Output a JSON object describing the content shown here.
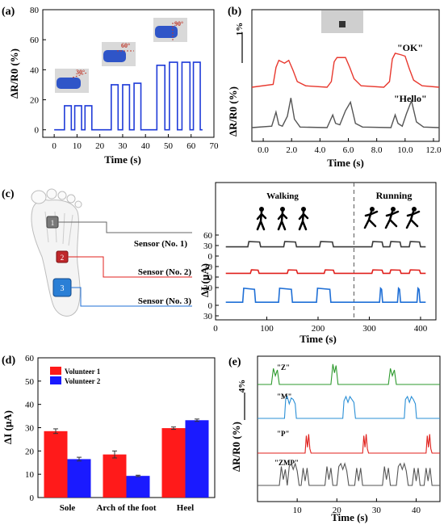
{
  "panels": {
    "a": "(a)",
    "b": "(b)",
    "c": "(c)",
    "d": "(d)",
    "e": "(e)"
  },
  "chart_data": [
    {
      "id": "a",
      "type": "line",
      "xlabel": "Time (s)",
      "ylabel": "ΔR/R0 (%)",
      "xlim": [
        -5,
        70
      ],
      "ylim": [
        -5,
        80
      ],
      "xticks": [
        0,
        10,
        20,
        30,
        40,
        50,
        60,
        70
      ],
      "yticks": [
        0,
        20,
        40,
        60,
        80
      ],
      "color": "#1f3bd8",
      "annotations": [
        "30°",
        "60°",
        "90°"
      ],
      "steps": [
        {
          "x0": 4.5,
          "x1": 7.5,
          "level": 16
        },
        {
          "x0": 9,
          "x1": 12,
          "level": 16
        },
        {
          "x0": 13.5,
          "x1": 16.5,
          "level": 16
        },
        {
          "x0": 25,
          "x1": 28,
          "level": 30
        },
        {
          "x0": 30,
          "x1": 33,
          "level": 30
        },
        {
          "x0": 35,
          "x1": 38,
          "level": 31
        },
        {
          "x0": 45,
          "x1": 48.5,
          "level": 43
        },
        {
          "x0": 50.5,
          "x1": 54,
          "level": 45
        },
        {
          "x0": 56,
          "x1": 59.5,
          "level": 45
        },
        {
          "x0": 61,
          "x1": 64,
          "level": 45
        }
      ]
    },
    {
      "id": "b",
      "type": "line",
      "xlabel": "Time (s)",
      "ylabel": "ΔR/R0 (%)",
      "scalebar": "1%",
      "xlim": [
        -0.8,
        12.4
      ],
      "xticks": [
        0.0,
        2.0,
        4.0,
        6.0,
        8.0,
        10.0,
        12.0
      ],
      "xtick_labels": [
        "0.0",
        "2.0",
        "4.0",
        "6.0",
        "8.0",
        "10.0",
        "12.0"
      ],
      "series": [
        {
          "name": "\"OK\"",
          "color": "#e8392f",
          "x": [
            -0.8,
            0.7,
            0.9,
            1.1,
            1.5,
            1.8,
            2.1,
            2.4,
            3.0,
            4.5,
            4.8,
            5.0,
            5.2,
            5.5,
            5.8,
            6.1,
            6.4,
            6.9,
            8.5,
            8.9,
            9.1,
            9.3,
            9.7,
            10.0,
            10.3,
            10.6,
            11.2,
            12.4
          ],
          "y": [
            0,
            0.1,
            0.7,
            0.95,
            0.85,
            0.95,
            0.6,
            0.2,
            0.05,
            0,
            0.2,
            0.9,
            1.05,
            1.05,
            1.05,
            0.7,
            0.3,
            0.05,
            0,
            0.2,
            1.0,
            1.2,
            1.15,
            1.1,
            0.65,
            0.25,
            0.05,
            0
          ]
        },
        {
          "name": "\"Hello\"",
          "color": "#555555",
          "x": [
            -0.8,
            0.6,
            0.9,
            1.1,
            1.35,
            1.7,
            1.95,
            2.2,
            2.6,
            4.5,
            4.9,
            5.1,
            5.4,
            5.8,
            6.15,
            6.5,
            7.0,
            9.0,
            9.3,
            9.5,
            9.8,
            10.1,
            10.45,
            10.8,
            11.3,
            12.4
          ],
          "y": [
            0,
            0.05,
            0.55,
            0.1,
            0.05,
            0.4,
            1.05,
            0.3,
            0.02,
            0,
            0.45,
            0.15,
            0.1,
            0.6,
            0.9,
            0.15,
            0.02,
            0,
            0.45,
            0.15,
            0.05,
            0.5,
            0.95,
            0.2,
            0.02,
            0
          ]
        }
      ]
    },
    {
      "id": "c",
      "type": "line",
      "xlabel": "Time (s)",
      "ylabel": "ΔI (μA)",
      "xlim": [
        0,
        430
      ],
      "xticks": [
        0,
        100,
        200,
        300,
        400
      ],
      "yticks": [
        0,
        30,
        60
      ],
      "ytick_labels": [
        "60",
        "30",
        "0",
        "30",
        "0",
        "30",
        "0",
        "30"
      ],
      "divider_x": 270,
      "regions": [
        "Walking",
        "Running"
      ],
      "sensors": [
        "Sensor (No. 1)",
        "Sensor (No. 2)",
        "Sensor (No. 3)"
      ],
      "series": [
        {
          "name": "Sensor (No. 1)",
          "color": "#3a3a3a",
          "baseline": 24,
          "amp": 15,
          "pulses": [
            [
              63,
              88
            ],
            [
              133,
              158
            ],
            [
              203,
              230
            ],
            [
              305,
              327
            ],
            [
              340,
              362
            ],
            [
              378,
              400
            ]
          ]
        },
        {
          "name": "Sensor (No. 2)",
          "color": "#e0201c",
          "baseline": 22,
          "amp": 10,
          "pulses": [
            [
              68,
              85
            ],
            [
              140,
              160
            ],
            [
              212,
              232
            ],
            [
              305,
              327
            ],
            [
              340,
              362
            ],
            [
              378,
              400
            ]
          ]
        },
        {
          "name": "Sensor (No. 3)",
          "color": "#1f6fd6",
          "baseline": 18,
          "amp": 40,
          "pulses": [
            [
              53,
              78
            ],
            [
              123,
              150
            ],
            [
              197,
              225
            ],
            [
              320,
              326
            ],
            [
              355,
              361
            ],
            [
              393,
              399
            ]
          ]
        }
      ]
    },
    {
      "id": "d",
      "type": "bar",
      "ylabel": "ΔI (μA)",
      "ylim": [
        0,
        60
      ],
      "yticks": [
        0,
        10,
        20,
        30,
        40,
        50,
        60
      ],
      "categories": [
        "Sole",
        "Arch of the foot",
        "Heel"
      ],
      "series": [
        {
          "name": "Volunteer 1",
          "color": "#ff1a1a",
          "values": [
            28.5,
            18.5,
            29.8
          ],
          "errors": [
            1.0,
            1.5,
            0.5
          ]
        },
        {
          "name": "Volunteer 2",
          "color": "#1a1aff",
          "values": [
            16.5,
            9.3,
            33.2
          ],
          "errors": [
            0.8,
            0.3,
            0.5
          ]
        }
      ],
      "legend": "top-left"
    },
    {
      "id": "e",
      "type": "line",
      "xlabel": "Time (s)",
      "ylabel": "ΔR/R0 (%)",
      "scalebar": "4%",
      "xlim": [
        0,
        46
      ],
      "xticks": [
        10,
        20,
        30,
        40
      ],
      "series": [
        {
          "name": "\"Z\"",
          "color": "#2e9a2e",
          "x": [
            0,
            3.5,
            4.0,
            4.5,
            5.0,
            5.5,
            18.5,
            19.0,
            19.4,
            19.8,
            20.3,
            33.0,
            33.5,
            34.0,
            34.5,
            35.0,
            46
          ],
          "y": [
            0,
            0,
            1.1,
            0.6,
            1.0,
            0,
            0,
            1.4,
            0.8,
            1.3,
            0,
            0,
            1.1,
            0.6,
            1.0,
            0,
            0
          ]
        },
        {
          "name": "\"M\"",
          "color": "#2a8fd6",
          "x": [
            0,
            6.8,
            7.1,
            7.5,
            8.0,
            8.5,
            9.0,
            9.5,
            9.8,
            21.5,
            21.8,
            22.3,
            22.8,
            23.3,
            23.8,
            24.3,
            24.7,
            37.0,
            37.3,
            37.8,
            38.3,
            38.8,
            39.3,
            39.8,
            40.1,
            46
          ],
          "y": [
            0,
            0,
            1.3,
            1.5,
            1.0,
            1.4,
            1.3,
            1.0,
            0,
            0,
            1.2,
            1.5,
            1.1,
            1.5,
            1.3,
            1.1,
            0,
            0,
            1.3,
            1.5,
            1.1,
            1.5,
            1.3,
            1.0,
            0,
            0
          ]
        },
        {
          "name": "\"P\"",
          "color": "#e0201c",
          "x": [
            0,
            12.0,
            12.3,
            12.6,
            12.9,
            13.2,
            13.5,
            26.5,
            26.8,
            27.1,
            27.4,
            27.7,
            28.0,
            42.5,
            42.8,
            43.1,
            43.4,
            43.7,
            44.0,
            46
          ],
          "y": [
            0,
            0,
            1.2,
            0.4,
            1.3,
            0.3,
            0,
            0,
            1.2,
            0.4,
            1.3,
            0.3,
            0,
            0,
            1.2,
            0.4,
            1.3,
            0.3,
            0,
            0
          ]
        },
        {
          "name": "\"ZMP\"",
          "color": "#555555",
          "x": [
            0,
            5.5,
            6.0,
            6.5,
            7.0,
            7.5,
            8.0,
            8.5,
            9.0,
            9.5,
            10.0,
            10.5,
            11.0,
            11.5,
            12.0,
            12.5,
            13.0,
            13.5,
            17.0,
            17.5,
            18.0,
            18.5,
            19.0,
            20.0,
            20.5,
            21.0,
            21.5,
            22.0,
            22.5,
            23.0,
            23.5,
            24.5,
            25.0,
            25.5,
            26.0,
            26.5,
            27.0,
            31.5,
            32.0,
            32.5,
            33.0,
            33.5,
            35.0,
            35.5,
            36.0,
            36.5,
            37.0,
            37.5,
            38.0,
            39.0,
            39.5,
            40.0,
            40.5,
            41.0,
            42.0,
            42.5,
            43.0,
            43.5,
            44.0,
            46
          ],
          "y": [
            0,
            0,
            1.3,
            0.4,
            1.1,
            0,
            1.3,
            1.5,
            1.1,
            1.5,
            1.0,
            0,
            0,
            1.2,
            0.3,
            1.2,
            0,
            0,
            0,
            1.3,
            0.4,
            1.2,
            0,
            0,
            1.3,
            1.5,
            1.1,
            1.5,
            1.0,
            0,
            0,
            0,
            1.2,
            0.3,
            1.2,
            0,
            0,
            0,
            1.3,
            0.4,
            1.2,
            0,
            0,
            1.3,
            1.5,
            1.1,
            1.5,
            1.0,
            0,
            0,
            1.2,
            0.3,
            1.2,
            0,
            0,
            1.2,
            0.3,
            1.2,
            0,
            0
          ]
        }
      ]
    }
  ]
}
